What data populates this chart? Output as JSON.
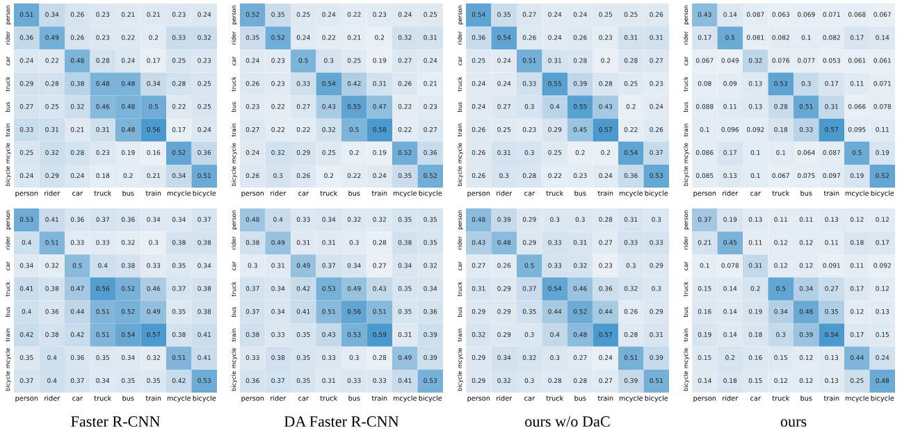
{
  "chart_data": [
    {
      "type": "heatmap",
      "categories": [
        "person",
        "rider",
        "car",
        "truck",
        "bus",
        "train",
        "mcycle",
        "bicycle"
      ],
      "y_categories": [
        "person",
        "rider",
        "car",
        "truck",
        "bus",
        "train",
        "mcycle",
        "bicycle"
      ],
      "data_labels": true,
      "cells": [
        [
          0.51,
          0.34,
          0.26,
          0.23,
          0.21,
          0.21,
          0.23,
          0.24
        ],
        [
          0.36,
          0.49,
          0.26,
          0.23,
          0.22,
          0.2,
          0.33,
          0.32
        ],
        [
          0.24,
          0.22,
          0.48,
          0.28,
          0.24,
          0.17,
          0.25,
          0.23
        ],
        [
          0.29,
          0.28,
          0.38,
          0.48,
          0.48,
          0.34,
          0.28,
          0.25
        ],
        [
          0.27,
          0.25,
          0.32,
          0.46,
          0.48,
          0.5,
          0.22,
          0.25
        ],
        [
          0.33,
          0.31,
          0.21,
          0.31,
          0.48,
          0.56,
          0.17,
          0.24
        ],
        [
          0.25,
          0.32,
          0.28,
          0.23,
          0.19,
          0.16,
          0.52,
          0.36
        ],
        [
          0.24,
          0.29,
          0.24,
          0.18,
          0.2,
          0.21,
          0.34,
          0.51
        ]
      ]
    },
    {
      "type": "heatmap",
      "categories": [
        "person",
        "rider",
        "car",
        "truck",
        "bus",
        "train",
        "mcycle",
        "bicycle"
      ],
      "y_categories": [
        "person",
        "rider",
        "car",
        "truck",
        "bus",
        "train",
        "mcycle",
        "bicycle"
      ],
      "data_labels": true,
      "cells": [
        [
          0.52,
          0.35,
          0.25,
          0.24,
          0.22,
          0.23,
          0.24,
          0.25
        ],
        [
          0.35,
          0.52,
          0.24,
          0.22,
          0.21,
          0.2,
          0.32,
          0.31
        ],
        [
          0.24,
          0.23,
          0.5,
          0.3,
          0.25,
          0.19,
          0.27,
          0.24
        ],
        [
          0.26,
          0.23,
          0.33,
          0.54,
          0.42,
          0.31,
          0.26,
          0.21
        ],
        [
          0.23,
          0.22,
          0.27,
          0.43,
          0.55,
          0.47,
          0.22,
          0.23
        ],
        [
          0.27,
          0.22,
          0.22,
          0.32,
          0.5,
          0.58,
          0.22,
          0.27
        ],
        [
          0.24,
          0.32,
          0.29,
          0.25,
          0.2,
          0.19,
          0.52,
          0.36
        ],
        [
          0.26,
          0.3,
          0.26,
          0.2,
          0.22,
          0.24,
          0.35,
          0.52
        ]
      ]
    },
    {
      "type": "heatmap",
      "categories": [
        "person",
        "rider",
        "car",
        "truck",
        "bus",
        "train",
        "mcycle",
        "bicycle"
      ],
      "y_categories": [
        "person",
        "rider",
        "car",
        "truck",
        "bus",
        "train",
        "mcycle",
        "bicycle"
      ],
      "data_labels": true,
      "cells": [
        [
          0.54,
          0.35,
          0.27,
          0.24,
          0.24,
          0.25,
          0.25,
          0.26
        ],
        [
          0.36,
          0.54,
          0.26,
          0.24,
          0.26,
          0.23,
          0.31,
          0.31
        ],
        [
          0.25,
          0.24,
          0.51,
          0.31,
          0.28,
          0.2,
          0.28,
          0.27
        ],
        [
          0.24,
          0.24,
          0.33,
          0.55,
          0.39,
          0.28,
          0.25,
          0.23
        ],
        [
          0.24,
          0.27,
          0.3,
          0.4,
          0.55,
          0.43,
          0.2,
          0.24
        ],
        [
          0.26,
          0.25,
          0.23,
          0.29,
          0.45,
          0.57,
          0.22,
          0.26
        ],
        [
          0.26,
          0.31,
          0.3,
          0.25,
          0.2,
          0.2,
          0.54,
          0.37
        ],
        [
          0.26,
          0.3,
          0.28,
          0.22,
          0.23,
          0.24,
          0.36,
          0.53
        ]
      ]
    },
    {
      "type": "heatmap",
      "categories": [
        "person",
        "rider",
        "car",
        "truck",
        "bus",
        "train",
        "mcycle",
        "bicycle"
      ],
      "y_categories": [
        "person",
        "rider",
        "car",
        "truck",
        "bus",
        "train",
        "mcycle",
        "bicycle"
      ],
      "data_labels": true,
      "cells": [
        [
          0.43,
          0.14,
          0.087,
          0.063,
          0.069,
          0.071,
          0.068,
          0.067
        ],
        [
          0.17,
          0.5,
          0.081,
          0.082,
          0.1,
          0.082,
          0.17,
          0.14
        ],
        [
          0.067,
          0.049,
          0.32,
          0.076,
          0.077,
          0.053,
          0.061,
          0.061
        ],
        [
          0.08,
          0.09,
          0.13,
          0.53,
          0.3,
          0.17,
          0.11,
          0.071
        ],
        [
          0.088,
          0.11,
          0.13,
          0.28,
          0.51,
          0.31,
          0.066,
          0.078
        ],
        [
          0.1,
          0.096,
          0.092,
          0.18,
          0.33,
          0.57,
          0.095,
          0.11
        ],
        [
          0.086,
          0.17,
          0.1,
          0.1,
          0.064,
          0.087,
          0.5,
          0.19
        ],
        [
          0.085,
          0.13,
          0.1,
          0.067,
          0.075,
          0.097,
          0.19,
          0.52
        ]
      ]
    },
    {
      "type": "heatmap",
      "title": "Faster R-CNN",
      "categories": [
        "person",
        "rider",
        "car",
        "truck",
        "bus",
        "train",
        "mcycle",
        "bicycle"
      ],
      "y_categories": [
        "person",
        "rider",
        "car",
        "truck",
        "bus",
        "train",
        "mcycle",
        "bicycle"
      ],
      "data_labels": true,
      "cells": [
        [
          0.53,
          0.41,
          0.36,
          0.37,
          0.36,
          0.34,
          0.34,
          0.37
        ],
        [
          0.4,
          0.51,
          0.33,
          0.33,
          0.32,
          0.3,
          0.38,
          0.38
        ],
        [
          0.34,
          0.32,
          0.5,
          0.4,
          0.38,
          0.33,
          0.35,
          0.34
        ],
        [
          0.41,
          0.38,
          0.47,
          0.56,
          0.52,
          0.46,
          0.37,
          0.38
        ],
        [
          0.4,
          0.36,
          0.44,
          0.51,
          0.52,
          0.49,
          0.35,
          0.38
        ],
        [
          0.42,
          0.38,
          0.42,
          0.51,
          0.54,
          0.57,
          0.38,
          0.41
        ],
        [
          0.35,
          0.4,
          0.36,
          0.35,
          0.34,
          0.32,
          0.51,
          0.41
        ],
        [
          0.37,
          0.4,
          0.37,
          0.34,
          0.35,
          0.35,
          0.42,
          0.53
        ]
      ]
    },
    {
      "type": "heatmap",
      "title": "DA Faster R-CNN",
      "categories": [
        "person",
        "rider",
        "car",
        "truck",
        "bus",
        "train",
        "mcycle",
        "bicycle"
      ],
      "y_categories": [
        "person",
        "rider",
        "car",
        "truck",
        "bus",
        "train",
        "mcycle",
        "bicycle"
      ],
      "data_labels": true,
      "cells": [
        [
          0.48,
          0.4,
          0.33,
          0.34,
          0.32,
          0.32,
          0.35,
          0.35
        ],
        [
          0.38,
          0.49,
          0.31,
          0.31,
          0.3,
          0.28,
          0.38,
          0.35
        ],
        [
          0.3,
          0.31,
          0.49,
          0.37,
          0.34,
          0.27,
          0.34,
          0.32
        ],
        [
          0.37,
          0.34,
          0.42,
          0.53,
          0.49,
          0.43,
          0.35,
          0.34
        ],
        [
          0.37,
          0.34,
          0.41,
          0.51,
          0.56,
          0.51,
          0.35,
          0.36
        ],
        [
          0.38,
          0.33,
          0.35,
          0.43,
          0.53,
          0.59,
          0.31,
          0.39
        ],
        [
          0.33,
          0.38,
          0.35,
          0.33,
          0.3,
          0.28,
          0.49,
          0.39
        ],
        [
          0.36,
          0.37,
          0.35,
          0.31,
          0.33,
          0.33,
          0.41,
          0.53
        ]
      ]
    },
    {
      "type": "heatmap",
      "title": "ours w/o DaC",
      "categories": [
        "person",
        "rider",
        "car",
        "truck",
        "bus",
        "train",
        "mcycle",
        "bicycle"
      ],
      "y_categories": [
        "person",
        "rider",
        "car",
        "truck",
        "bus",
        "train",
        "mcycle",
        "bicycle"
      ],
      "data_labels": true,
      "cells": [
        [
          0.48,
          0.39,
          0.29,
          0.3,
          0.3,
          0.28,
          0.31,
          0.3
        ],
        [
          0.43,
          0.48,
          0.29,
          0.33,
          0.31,
          0.27,
          0.33,
          0.33
        ],
        [
          0.27,
          0.26,
          0.5,
          0.33,
          0.32,
          0.23,
          0.3,
          0.29
        ],
        [
          0.31,
          0.29,
          0.37,
          0.54,
          0.46,
          0.36,
          0.32,
          0.3
        ],
        [
          0.29,
          0.29,
          0.35,
          0.44,
          0.52,
          0.44,
          0.26,
          0.29
        ],
        [
          0.32,
          0.29,
          0.3,
          0.4,
          0.48,
          0.57,
          0.28,
          0.31
        ],
        [
          0.29,
          0.34,
          0.32,
          0.3,
          0.27,
          0.24,
          0.51,
          0.39
        ],
        [
          0.29,
          0.32,
          0.3,
          0.28,
          0.28,
          0.27,
          0.39,
          0.51
        ]
      ]
    },
    {
      "type": "heatmap",
      "title": "ours",
      "categories": [
        "person",
        "rider",
        "car",
        "truck",
        "bus",
        "train",
        "mcycle",
        "bicycle"
      ],
      "y_categories": [
        "person",
        "rider",
        "car",
        "truck",
        "bus",
        "train",
        "mcycle",
        "bicycle"
      ],
      "data_labels": true,
      "cells": [
        [
          0.37,
          0.19,
          0.13,
          0.11,
          0.11,
          0.13,
          0.12,
          0.12
        ],
        [
          0.21,
          0.45,
          0.11,
          0.12,
          0.12,
          0.11,
          0.18,
          0.17
        ],
        [
          0.1,
          0.078,
          0.31,
          0.12,
          0.12,
          0.091,
          0.11,
          0.092
        ],
        [
          0.15,
          0.14,
          0.2,
          0.5,
          0.34,
          0.27,
          0.17,
          0.12
        ],
        [
          0.16,
          0.14,
          0.19,
          0.34,
          0.48,
          0.35,
          0.12,
          0.13
        ],
        [
          0.19,
          0.14,
          0.18,
          0.3,
          0.39,
          0.54,
          0.17,
          0.15
        ],
        [
          0.15,
          0.2,
          0.16,
          0.15,
          0.12,
          0.13,
          0.44,
          0.24
        ],
        [
          0.14,
          0.18,
          0.15,
          0.12,
          0.12,
          0.13,
          0.25,
          0.48
        ]
      ]
    }
  ]
}
